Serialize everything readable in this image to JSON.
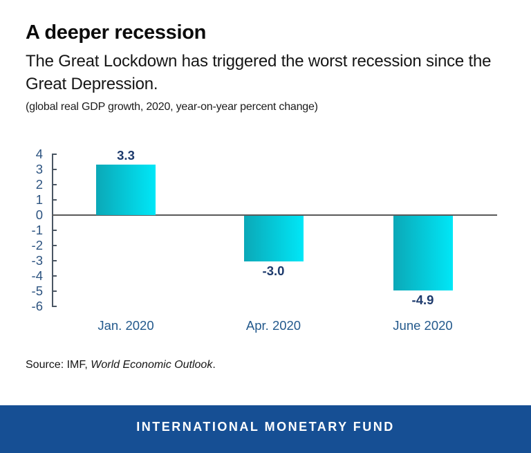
{
  "header": {
    "title": "A deeper recession",
    "subtitle_line1": "The Great Lockdown has triggered the worst recession since the",
    "subtitle_line2": "Great Depression.",
    "units_note": "(global real GDP growth, 2020, year-on-year percent change)"
  },
  "chart_data": {
    "type": "bar",
    "title": "A deeper recession",
    "subtitle": "(global real GDP growth, 2020, year-on-year percent change)",
    "categories": [
      "Jan. 2020",
      "Apr. 2020",
      "June 2020"
    ],
    "values": [
      3.3,
      -3.0,
      -4.9
    ],
    "value_labels": [
      "3.3",
      "-3.0",
      "-4.9"
    ],
    "xlabel": "",
    "ylabel": "",
    "ylim": [
      -6,
      4
    ],
    "yticks": [
      4,
      3,
      2,
      1,
      0,
      -1,
      -2,
      -3,
      -4,
      -5,
      -6
    ],
    "grid": false,
    "legend_position": "none",
    "bar_color_left": "#0BA8B7",
    "bar_color_right": "#00E7F7",
    "value_label_color": "#1D3A6C",
    "tick_label_color": "#2C5380",
    "category_label_color": "#23598C"
  },
  "source": {
    "prefix": "Source: IMF, ",
    "publication": "World Economic Outlook",
    "suffix": "."
  },
  "footer": {
    "label": "INTERNATIONAL MONETARY FUND",
    "background": "#164F94",
    "text_color": "#FFFFFF"
  }
}
